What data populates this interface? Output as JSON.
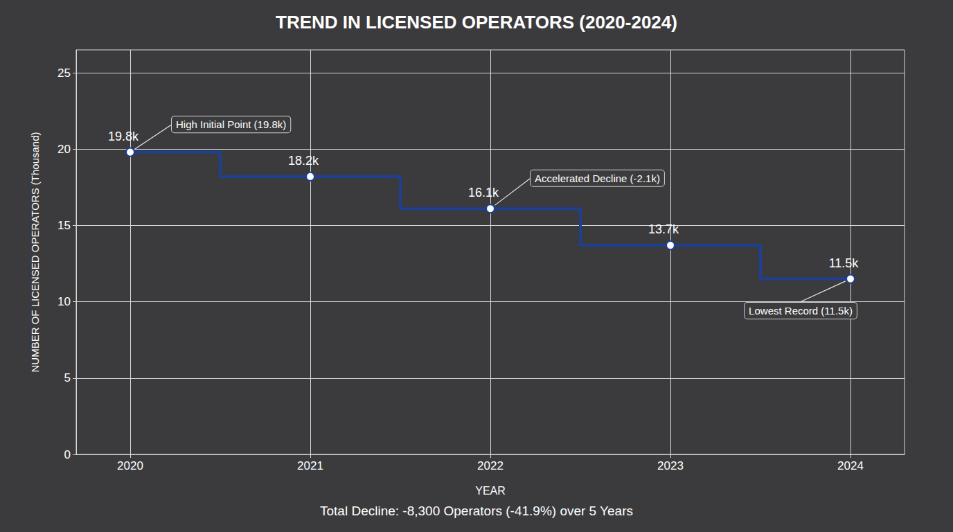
{
  "chart_data": {
    "type": "line",
    "title": "TREND IN LICENSED OPERATORS (2020-2024)",
    "x_label": "YEAR",
    "y_label": "NUMBER OF LICENSED OPERATORS (Thousand)",
    "x": [
      2020,
      2021,
      2022,
      2023,
      2024
    ],
    "values": [
      19.8,
      18.2,
      16.1,
      13.7,
      11.5
    ],
    "value_labels": [
      "19.8k",
      "18.2k",
      "16.1k",
      "13.7k",
      "11.5k"
    ],
    "color": "#1d3f94",
    "marker": "circle",
    "line_style": "stepped",
    "data_labels": true,
    "grid": true,
    "xlim": [
      2019.7,
      2024.3
    ],
    "xticks": [
      2020,
      2021,
      2022,
      2023,
      2024
    ],
    "ylim": [
      0,
      26.5
    ],
    "yticks": [
      0,
      5,
      10,
      15,
      20,
      25
    ],
    "annotations": [
      {
        "text": "High Initial Point (19.8k)",
        "x": 2020,
        "y": 19.8
      },
      {
        "text": "Accelerated Decline (-2.1k)",
        "x": 2022,
        "y": 16.1
      },
      {
        "text": "Lowest Record (11.5k)",
        "x": 2024,
        "y": 11.5
      }
    ],
    "caption": "Total Decline: -8,300 Operators (-41.9%) over 5 Years"
  }
}
